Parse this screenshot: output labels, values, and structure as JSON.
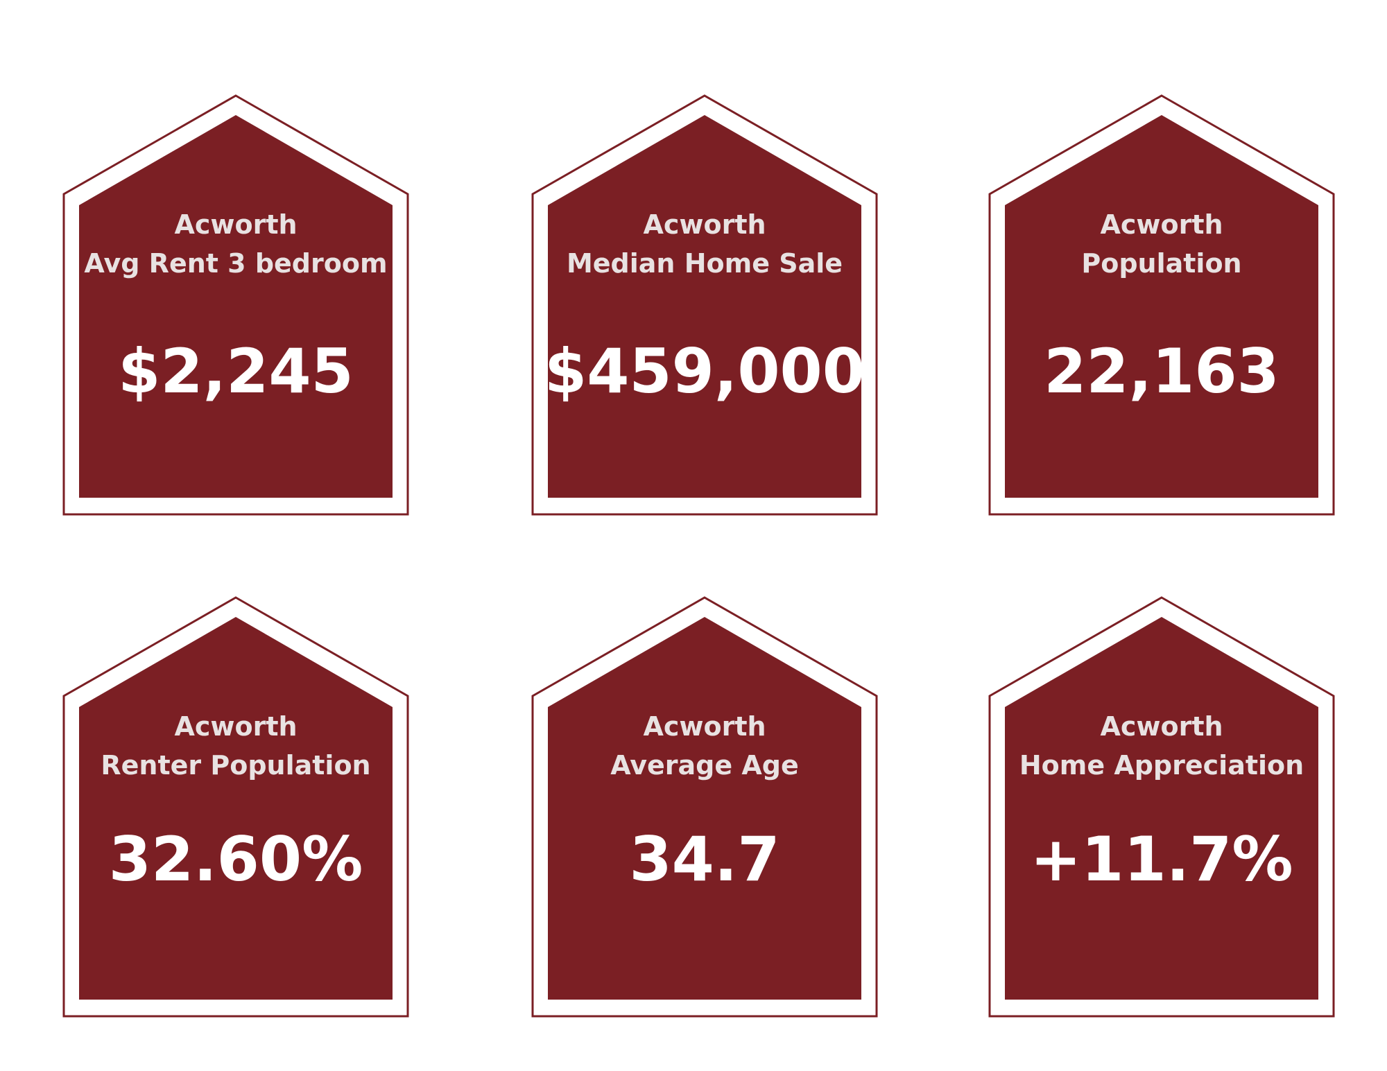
{
  "colors": {
    "house_fill": "#7b1f24",
    "label_text": "#e8e2e2",
    "value_text": "#ffffff",
    "background": "#ffffff"
  },
  "cards": [
    {
      "city": "Acworth",
      "metric": "Avg Rent 3 bedroom",
      "value": "$2,245"
    },
    {
      "city": "Acworth",
      "metric": "Median Home Sale",
      "value": "$459,000"
    },
    {
      "city": "Acworth",
      "metric": "Population",
      "value": "22,163"
    },
    {
      "city": "Acworth",
      "metric": "Renter Population",
      "value": "32.60%"
    },
    {
      "city": "Acworth",
      "metric": "Average Age",
      "value": "34.7"
    },
    {
      "city": "Acworth",
      "metric": "Home Appreciation",
      "value": "+11.7%"
    }
  ]
}
